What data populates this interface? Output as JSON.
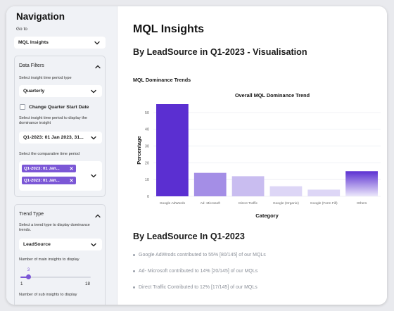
{
  "sidebar": {
    "title": "Navigation",
    "goto_label": "Go to",
    "goto_value": "MQL Insights",
    "data_filters": {
      "title": "Data Filters",
      "period_type_label": "Select insight time period type",
      "period_type_value": "Quarterly",
      "change_quarter_label": "Change Quarter Start Date",
      "change_quarter_checked": false,
      "dominance_period_label": "Select insight time period to display the dominance insight",
      "dominance_period_value": "Q1-2023: 01 Jan 2023, 31...",
      "comparative_label": "Select the comparative time period",
      "comparative_chips": [
        "Q1-2023: 01 Jan...",
        "Q1-2023: 01 Jan..."
      ]
    },
    "trend_type": {
      "title": "Trend Type",
      "trend_label": "Select a  trend type to display dominance trends.",
      "trend_value": "LeadSource",
      "main_insights_label": "Number of main insights to display",
      "main_insights_value": "3",
      "main_insights_fraction": 0.118,
      "main_insights_min": "1",
      "main_insights_max": "18",
      "sub_insights_label": "Number of sub insights to display"
    }
  },
  "main": {
    "title": "MQL Insights",
    "subtitle": "By LeadSource in Q1-2023 - Visualisation",
    "trends_heading": "MQL Dominance Trends",
    "section2_title": "By LeadSource In Q1-2023",
    "bullets": [
      "Google AdWrods contributed to 55% [80/145] of our MQLs",
      "Ad- Microsoft contributed to 14% [20/145] of our MQLs",
      "Direct Traffic Contributed to 12% [17/145] of our MQLs"
    ]
  },
  "colors": {
    "accent": "#7b57d6",
    "bar_primary": "#5b2fd1",
    "bar_secondary": "#a48ee6",
    "bar_tertiary": "#c9bdf0",
    "bar_light": "#ddd6f6"
  },
  "chart_data": {
    "type": "bar",
    "title": "Overall MQL Dominance Trend",
    "xlabel": "Category",
    "ylabel": "Percentage",
    "categories": [
      "Google AdWords",
      "Ad- Microsoft",
      "Direct Traffic",
      "Google (Organic)",
      "Google (Form Fill)",
      "Others"
    ],
    "values": [
      55,
      14,
      12,
      6,
      4,
      15
    ],
    "ylim": [
      0,
      55
    ],
    "yticks": [
      0,
      10,
      20,
      30,
      40,
      50
    ],
    "grid": true,
    "legend": "none"
  }
}
